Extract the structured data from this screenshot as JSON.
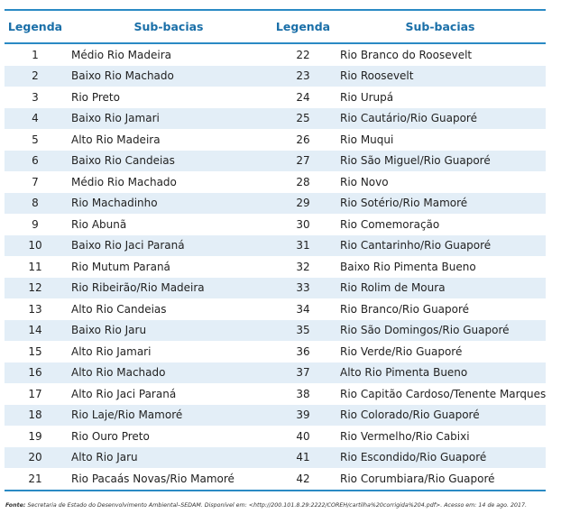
{
  "table": {
    "headers": [
      "Legenda",
      "Sub-bacias",
      "Legenda",
      "Sub-bacias"
    ],
    "rows": [
      [
        1,
        "Médio Rio Madeira",
        22,
        "Rio Branco do Roosevelt"
      ],
      [
        2,
        "Baixo Rio Machado",
        23,
        "Rio Roosevelt"
      ],
      [
        3,
        "Rio Preto",
        24,
        "Rio Urupá"
      ],
      [
        4,
        "Baixo Rio Jamari",
        25,
        "Rio Cautário/Rio Guaporé"
      ],
      [
        5,
        "Alto Rio Madeira",
        26,
        "Rio Muqui"
      ],
      [
        6,
        "Baixo Rio Candeias",
        27,
        "Rio São Miguel/Rio Guaporé"
      ],
      [
        7,
        "Médio Rio Machado",
        28,
        "Rio Novo"
      ],
      [
        8,
        "Rio Machadinho",
        29,
        "Rio Sotério/Rio Mamoré"
      ],
      [
        9,
        "Rio Abunã",
        30,
        "Rio Comemoração"
      ],
      [
        10,
        "Baixo Rio Jaci Paraná",
        31,
        "Rio Cantarinho/Rio Guaporé"
      ],
      [
        11,
        "Rio Mutum Paraná",
        32,
        "Baixo Rio Pimenta Bueno"
      ],
      [
        12,
        "Rio Ribeirão/Rio Madeira",
        33,
        "Rio Rolim de Moura"
      ],
      [
        13,
        "Alto Rio Candeias",
        34,
        "Rio Branco/Rio Guaporé"
      ],
      [
        14,
        "Baixo Rio Jaru",
        35,
        "Rio São Domingos/Rio Guaporé"
      ],
      [
        15,
        "Alto Rio Jamari",
        36,
        "Rio Verde/Rio Guaporé"
      ],
      [
        16,
        "Alto Rio Machado",
        37,
        "Alto Rio Pimenta Bueno"
      ],
      [
        17,
        "Alto Rio Jaci Paraná",
        38,
        "Rio Capitão Cardoso/Tenente Marques"
      ],
      [
        18,
        "Rio Laje/Rio Mamoré",
        39,
        "Rio Colorado/Rio Guaporé"
      ],
      [
        19,
        "Rio Ouro Preto",
        40,
        "Rio Vermelho/Rio Cabixi"
      ],
      [
        20,
        "Alto Rio Jaru",
        41,
        "Rio Escondido/Rio Guaporé"
      ],
      [
        21,
        "Rio Pacaás Novas/Rio Mamoré",
        42,
        "Rio Corumbiara/Rio Guaporé"
      ]
    ]
  },
  "source": {
    "label": "Fonte:",
    "text": "Secretaria de Estado do Desenvolvimento Ambiental–SEDAM. Disponível em: <http://200.101.8.29:2222/COREH/cartilha%20corrigida%204.pdf>. Acesso em: 14 de ago. 2017."
  }
}
